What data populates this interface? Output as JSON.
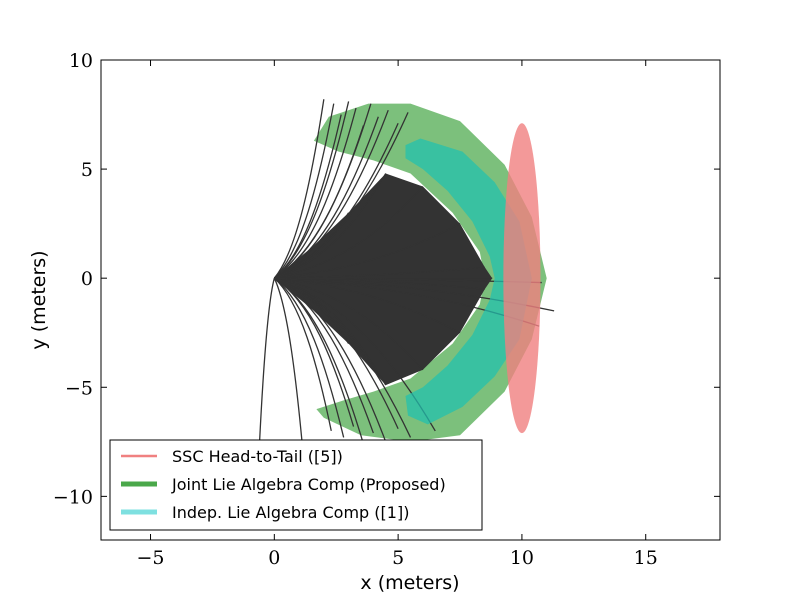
{
  "chart_data": {
    "type": "scatter",
    "title": "",
    "xlabel": "x (meters)",
    "ylabel": "y (meters)",
    "xlim": [
      -7,
      18
    ],
    "ylim": [
      -12,
      10
    ],
    "xticks": [
      -5,
      0,
      5,
      10,
      15
    ],
    "yticks": [
      -10,
      -5,
      0,
      5,
      10
    ],
    "xtick_labels": [
      "−5",
      "0",
      "5",
      "10",
      "15"
    ],
    "ytick_labels": [
      "−10",
      "−5",
      "0",
      "5",
      "10"
    ],
    "grid": false,
    "legend_position": "lower-left",
    "series": [
      {
        "name": "SSC Head-to-Tail ([5])",
        "kind": "ellipse",
        "color": "#f08080",
        "center": [
          10,
          0
        ],
        "semi_axes": [
          0.75,
          7.1
        ]
      },
      {
        "name": "Joint Lie Algebra Comp (Proposed)",
        "kind": "crescent",
        "color": "#4aa84a",
        "outer_boundary": [
          [
            5.5,
            8
          ],
          [
            7.5,
            7.2
          ],
          [
            9.3,
            5.2
          ],
          [
            10.4,
            2.8
          ],
          [
            11.0,
            0
          ],
          [
            10.4,
            -2.8
          ],
          [
            9.3,
            -5.2
          ],
          [
            7.5,
            -7.2
          ],
          [
            5.5,
            -7.5
          ],
          [
            3.5,
            -7.2
          ],
          [
            2.0,
            -6.4
          ],
          [
            1.7,
            -6.0
          ],
          [
            2.8,
            -5.6
          ],
          [
            4.0,
            -5.2
          ],
          [
            5.5,
            -4.6
          ],
          [
            7.2,
            -3.0
          ],
          [
            8.3,
            -1.2
          ],
          [
            8.5,
            0
          ],
          [
            8.3,
            1.2
          ],
          [
            7.2,
            3.0
          ],
          [
            5.5,
            4.8
          ],
          [
            4.0,
            5.4
          ],
          [
            2.6,
            5.8
          ],
          [
            1.6,
            6.3
          ],
          [
            2.2,
            7.4
          ],
          [
            3.8,
            8.0
          ]
        ]
      },
      {
        "name": "Indep. Lie Algebra Comp ([1])",
        "kind": "crescent",
        "color": "#20c0b0",
        "outer_boundary": [
          [
            5.9,
            6.4
          ],
          [
            7.6,
            5.8
          ],
          [
            8.9,
            4.4
          ],
          [
            9.9,
            2.6
          ],
          [
            10.4,
            0
          ],
          [
            9.9,
            -2.8
          ],
          [
            8.9,
            -4.5
          ],
          [
            7.6,
            -5.9
          ],
          [
            6.2,
            -6.7
          ],
          [
            5.4,
            -6.3
          ],
          [
            5.3,
            -5.4
          ],
          [
            6.0,
            -5.0
          ],
          [
            7.0,
            -4.0
          ],
          [
            8.0,
            -2.6
          ],
          [
            8.7,
            -1.0
          ],
          [
            8.9,
            0
          ],
          [
            8.7,
            1.0
          ],
          [
            8.0,
            2.6
          ],
          [
            7.0,
            4.0
          ],
          [
            6.0,
            5.0
          ],
          [
            5.3,
            5.5
          ],
          [
            5.3,
            6.1
          ]
        ]
      },
      {
        "name": "sampled trajectories",
        "kind": "fan",
        "color": "#333333",
        "origin": [
          0,
          0
        ],
        "envelope": [
          [
            0,
            0
          ],
          [
            1.5,
            1.4
          ],
          [
            3.0,
            3.0
          ],
          [
            4.5,
            4.8
          ],
          [
            6.0,
            4.2
          ],
          [
            7.5,
            2.5
          ],
          [
            8.5,
            0.5
          ],
          [
            8.8,
            0
          ],
          [
            8.5,
            -0.5
          ],
          [
            7.5,
            -2.5
          ],
          [
            6.0,
            -4.2
          ],
          [
            4.5,
            -4.9
          ],
          [
            3.0,
            -3.0
          ],
          [
            1.5,
            -1.4
          ]
        ],
        "stray_endpoints": [
          [
            2.0,
            8.2
          ],
          [
            2.4,
            8.0
          ],
          [
            2.7,
            7.5
          ],
          [
            3.0,
            8.1
          ],
          [
            3.3,
            7.8
          ],
          [
            3.6,
            7.0
          ],
          [
            3.9,
            8.0
          ],
          [
            4.2,
            7.4
          ],
          [
            4.6,
            7.7
          ],
          [
            5.0,
            7.1
          ],
          [
            5.4,
            7.6
          ],
          [
            2.3,
            -7.0
          ],
          [
            2.8,
            -7.3
          ],
          [
            3.2,
            -6.8
          ],
          [
            3.6,
            -7.6
          ],
          [
            4.0,
            -7.1
          ],
          [
            4.5,
            -7.5
          ],
          [
            5.0,
            -6.9
          ],
          [
            5.5,
            -7.3
          ],
          [
            -0.6,
            -7.6
          ],
          [
            1.2,
            -8.5
          ],
          [
            11.3,
            -1.5
          ],
          [
            10.8,
            -0.2
          ],
          [
            10.7,
            -2.2
          ],
          [
            6.5,
            -7.0
          ]
        ]
      }
    ]
  }
}
